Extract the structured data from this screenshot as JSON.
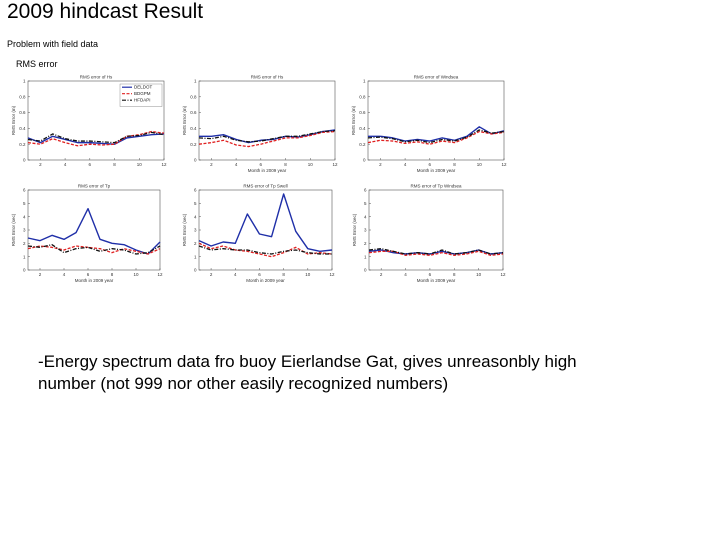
{
  "slide": {
    "title": "2009 hindcast Result",
    "subtitle": "Problem with field data",
    "rms_label": "RMS error",
    "body_line1": "-Energy spectrum data fro buoy Eierlandse Gat, gives unreasonbly high",
    "body_line2": "number (not 999 nor other easily recognized numbers)"
  },
  "colors": {
    "series1": "#1f2fa8",
    "series2": "#e02020",
    "series3": "#111111"
  },
  "chart_data": [
    {
      "type": "line",
      "title": "RMS error of Hs",
      "xlabel": "",
      "ylabel": "RMS Error (m)",
      "xlim": [
        1,
        12
      ],
      "ylim": [
        0,
        1
      ],
      "xticks": [
        2,
        4,
        6,
        8,
        10,
        12
      ],
      "yticks": [
        0,
        0.2,
        0.4,
        0.6,
        0.8,
        1
      ],
      "legend": [
        "DELDOT",
        "BDGPM",
        "HFDAPI"
      ],
      "legend_position": "top-right",
      "x": [
        1,
        2,
        3,
        4,
        5,
        6,
        7,
        8,
        9,
        10,
        11,
        12
      ],
      "series": [
        {
          "values": [
            0.28,
            0.22,
            0.3,
            0.26,
            0.22,
            0.22,
            0.21,
            0.2,
            0.28,
            0.3,
            0.32,
            0.33
          ]
        },
        {
          "values": [
            0.22,
            0.2,
            0.27,
            0.22,
            0.18,
            0.2,
            0.19,
            0.2,
            0.3,
            0.32,
            0.36,
            0.34
          ]
        },
        {
          "values": [
            0.26,
            0.24,
            0.33,
            0.27,
            0.24,
            0.24,
            0.23,
            0.22,
            0.3,
            0.31,
            0.35,
            0.32
          ]
        }
      ]
    },
    {
      "type": "line",
      "title": "RMS error of Hs",
      "xlabel": "Month in 2009 year",
      "ylabel": "RMS Error (m)",
      "xlim": [
        1,
        12
      ],
      "ylim": [
        0,
        1
      ],
      "xticks": [
        2,
        4,
        6,
        8,
        10,
        12
      ],
      "yticks": [
        0,
        0.2,
        0.4,
        0.6,
        0.8,
        1
      ],
      "x": [
        1,
        2,
        3,
        4,
        5,
        6,
        7,
        8,
        9,
        10,
        11,
        12
      ],
      "series": [
        {
          "values": [
            0.3,
            0.3,
            0.32,
            0.26,
            0.22,
            0.25,
            0.26,
            0.3,
            0.29,
            0.32,
            0.36,
            0.38
          ]
        },
        {
          "values": [
            0.2,
            0.22,
            0.25,
            0.19,
            0.17,
            0.2,
            0.24,
            0.28,
            0.28,
            0.31,
            0.35,
            0.36
          ]
        },
        {
          "values": [
            0.28,
            0.27,
            0.3,
            0.25,
            0.23,
            0.24,
            0.27,
            0.3,
            0.3,
            0.33,
            0.36,
            0.37
          ]
        }
      ]
    },
    {
      "type": "line",
      "title": "RMS error of Windsea",
      "xlabel": "Month in 2009 year",
      "ylabel": "RMS Error (m)",
      "xlim": [
        1,
        12
      ],
      "ylim": [
        0,
        1
      ],
      "xticks": [
        2,
        4,
        6,
        8,
        10,
        12
      ],
      "yticks": [
        0,
        0.2,
        0.4,
        0.6,
        0.8,
        1
      ],
      "x": [
        1,
        2,
        3,
        4,
        5,
        6,
        7,
        8,
        9,
        10,
        11,
        12
      ],
      "series": [
        {
          "values": [
            0.3,
            0.3,
            0.28,
            0.24,
            0.26,
            0.24,
            0.28,
            0.25,
            0.3,
            0.42,
            0.33,
            0.37
          ]
        },
        {
          "values": [
            0.22,
            0.25,
            0.24,
            0.21,
            0.23,
            0.2,
            0.24,
            0.22,
            0.28,
            0.36,
            0.33,
            0.35
          ]
        },
        {
          "values": [
            0.28,
            0.29,
            0.27,
            0.23,
            0.25,
            0.22,
            0.26,
            0.24,
            0.29,
            0.38,
            0.34,
            0.36
          ]
        }
      ]
    },
    {
      "type": "line",
      "title": "RMS error of Tp",
      "xlabel": "Month in 2009 year",
      "ylabel": "RMS Error (sec)",
      "xlim": [
        1,
        12
      ],
      "ylim": [
        0,
        6
      ],
      "xticks": [
        2,
        4,
        6,
        8,
        10,
        12
      ],
      "yticks": [
        0,
        1,
        2,
        3,
        4,
        5,
        6
      ],
      "x": [
        1,
        2,
        3,
        4,
        5,
        6,
        7,
        8,
        9,
        10,
        11,
        12
      ],
      "series": [
        {
          "values": [
            2.4,
            2.2,
            2.6,
            2.3,
            2.8,
            4.6,
            2.3,
            2.0,
            1.9,
            1.5,
            1.2,
            2.1
          ]
        },
        {
          "values": [
            1.6,
            1.8,
            1.7,
            1.5,
            1.8,
            1.7,
            1.6,
            1.3,
            1.6,
            1.4,
            1.2,
            1.6
          ]
        },
        {
          "values": [
            1.8,
            1.7,
            1.9,
            1.3,
            1.6,
            1.7,
            1.4,
            1.6,
            1.5,
            1.2,
            1.3,
            1.8
          ]
        }
      ]
    },
    {
      "type": "line",
      "title": "RMS error of Tp Swell",
      "xlabel": "Month in 2009 year",
      "ylabel": "RMS Error (sec)",
      "xlim": [
        1,
        12
      ],
      "ylim": [
        0,
        6
      ],
      "xticks": [
        2,
        4,
        6,
        8,
        10,
        12
      ],
      "yticks": [
        0,
        1,
        2,
        3,
        4,
        5,
        6
      ],
      "x": [
        1,
        2,
        3,
        4,
        5,
        6,
        7,
        8,
        9,
        10,
        11,
        12
      ],
      "series": [
        {
          "values": [
            2.2,
            1.8,
            2.1,
            2.0,
            4.2,
            2.7,
            2.5,
            5.7,
            2.9,
            1.6,
            1.4,
            1.5
          ]
        },
        {
          "values": [
            2.0,
            1.6,
            1.8,
            1.5,
            1.4,
            1.2,
            1.0,
            1.3,
            1.7,
            1.2,
            1.3,
            1.2
          ]
        },
        {
          "values": [
            1.8,
            1.5,
            1.6,
            1.5,
            1.5,
            1.3,
            1.2,
            1.4,
            1.5,
            1.3,
            1.2,
            1.2
          ]
        }
      ]
    },
    {
      "type": "line",
      "title": "RMS error of Tp Windsea",
      "xlabel": "Month in 2009 year",
      "ylabel": "RMS Error (sec)",
      "xlim": [
        1,
        12
      ],
      "ylim": [
        0,
        6
      ],
      "xticks": [
        2,
        4,
        6,
        8,
        10,
        12
      ],
      "yticks": [
        0,
        1,
        2,
        3,
        4,
        5,
        6
      ],
      "x": [
        1,
        2,
        3,
        4,
        5,
        6,
        7,
        8,
        9,
        10,
        11,
        12
      ],
      "series": [
        {
          "values": [
            1.4,
            1.5,
            1.3,
            1.2,
            1.3,
            1.2,
            1.4,
            1.2,
            1.3,
            1.5,
            1.2,
            1.3
          ]
        },
        {
          "values": [
            1.3,
            1.4,
            1.4,
            1.1,
            1.2,
            1.1,
            1.3,
            1.1,
            1.2,
            1.4,
            1.1,
            1.2
          ]
        },
        {
          "values": [
            1.5,
            1.6,
            1.4,
            1.2,
            1.3,
            1.2,
            1.5,
            1.2,
            1.3,
            1.5,
            1.2,
            1.3
          ]
        }
      ]
    }
  ]
}
